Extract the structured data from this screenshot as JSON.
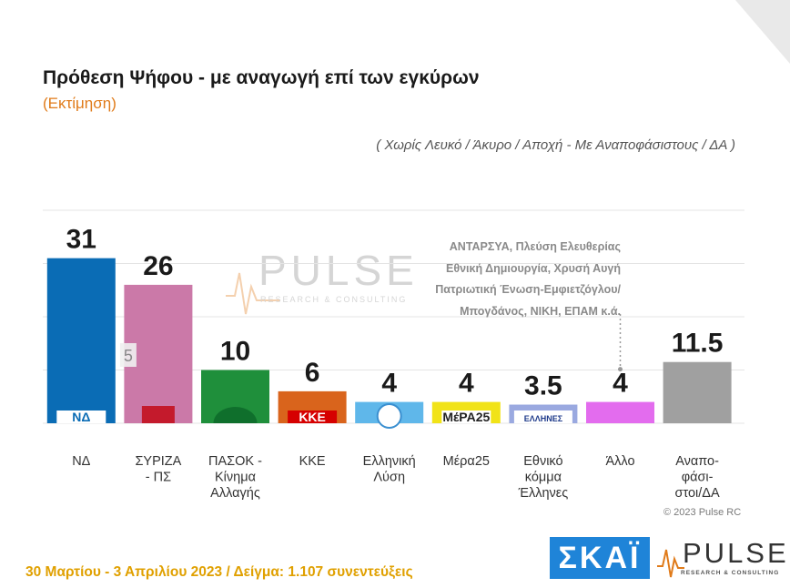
{
  "header": {
    "title": "Πρόθεση Ψήφου - με αναγωγή επί των εγκύρων",
    "subtitle": "(Εκτίμηση)",
    "note": "( Χωρίς Λευκό / Άκυρο / Αποχή  -  Με Αναποφάσιστους / ΔΑ )"
  },
  "other_note": [
    "ΑΝΤΑΡΣΥΑ, Πλεύση Ελευθερίας",
    "Εθνική Δημιουργία, Χρυσή Αυγή",
    "Πατριωτική Ένωση-Εμφιετζόγλου/",
    "Μπογδάνος, ΝΙΚΗ, ΕΠΑΜ   κ.ά."
  ],
  "colors": {
    "accent": "#e07b1a",
    "footer": "#e0a000",
    "skai": "#1f84d8"
  },
  "chart_data": {
    "type": "bar",
    "title": "Πρόθεση Ψήφου - με αναγωγή επί των εγκύρων",
    "subtitle": "(Εκτίμηση)",
    "categories": [
      [
        "ΝΔ"
      ],
      [
        "ΣΥΡΙΖΑ",
        "- ΠΣ"
      ],
      [
        "ΠΑΣΟΚ -",
        "Κίνημα",
        "Αλλαγής"
      ],
      [
        "ΚΚΕ"
      ],
      [
        "Ελληνική",
        "Λύση"
      ],
      [
        "Μέρα25"
      ],
      [
        "Εθνικό",
        "κόμμα",
        "Έλληνες"
      ],
      [
        "Άλλο"
      ],
      [
        "Αναπο-",
        "φάσι-",
        "στοι/ΔΑ"
      ]
    ],
    "values": [
      31,
      26,
      10,
      6,
      4,
      4,
      3.5,
      4,
      11.5
    ],
    "value_labels": [
      "31",
      "26",
      "10",
      "6",
      "4",
      "4",
      "3.5",
      "4",
      "11.5"
    ],
    "colors": [
      "#0a6cb5",
      "#cb79a8",
      "#1f8f3b",
      "#d9641c",
      "#5fb7ea",
      "#f1e317",
      "#9aa9e0",
      "#e36cee",
      "#a0a0a0"
    ],
    "logos": [
      "ΝΔ",
      "",
      "",
      "ΚΚΕ",
      "",
      "ΜέΡΑ25",
      "ΕΛΛΗΝΕΣ",
      "",
      ""
    ],
    "inset_label": "5",
    "ylim": [
      0,
      35
    ],
    "grid": true
  },
  "watermark": {
    "word": "PULSE",
    "sub": "RESEARCH & CONSULTING"
  },
  "copyright": "© 2023 Pulse RC",
  "footer": "30 Μαρτίου - 3  Απριλίου  2023  /  Δείγμα:  1.107 συνεντεύξεις",
  "logos": {
    "skai": "ΣΚΑΪ",
    "pulse": "PULSE",
    "pulse_sub": "RESEARCH & CONSULTING"
  }
}
